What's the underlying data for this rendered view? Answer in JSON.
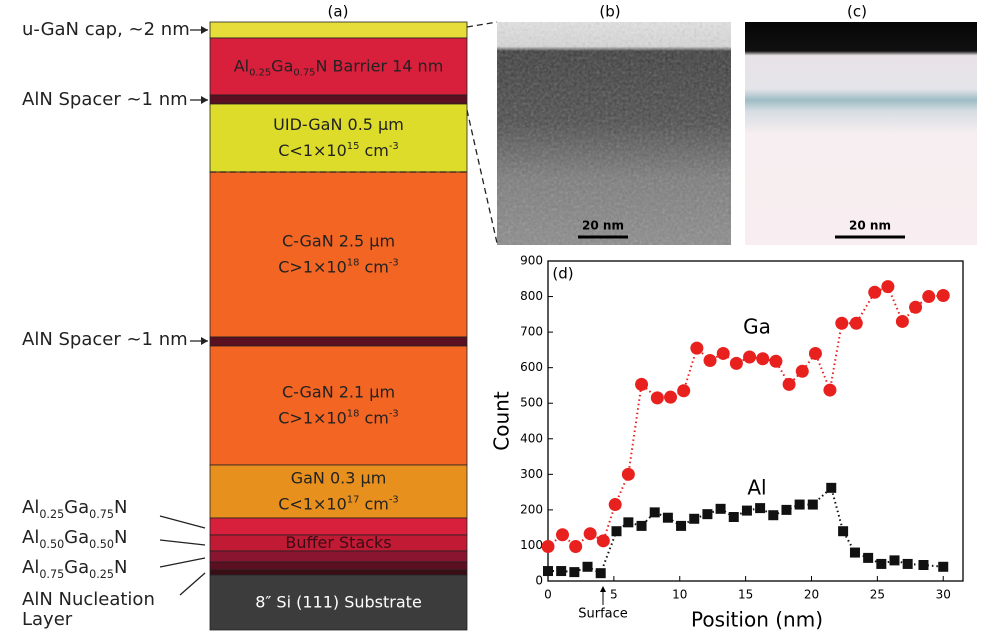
{
  "panels": [
    "(a)",
    "(b)",
    "(c)"
  ],
  "stack": {
    "layers": [
      {
        "color": "#e6dd3a"
      },
      {
        "color": "#d81f3c",
        "lines": [
          [
            {
              "t": "Al"
            },
            {
              "sub": "0.25"
            },
            {
              "t": "Ga"
            },
            {
              "sub": "0.75"
            },
            {
              "t": "N Barrier 14 nm"
            }
          ]
        ]
      },
      {
        "color": "#5a1020"
      },
      {
        "color": "#dddc2a",
        "lines": [
          [
            {
              "t": "UID-GaN 0.5 μm"
            }
          ],
          [
            {
              "t": "C<1×10"
            },
            {
              "sup": "15"
            },
            {
              "t": " cm"
            },
            {
              "sup": "-3"
            }
          ]
        ]
      },
      {
        "color": "#f26522",
        "lines": [
          [
            {
              "t": "C-GaN 2.5 μm"
            }
          ],
          [
            {
              "t": "C>1×10"
            },
            {
              "sup": "18"
            },
            {
              "t": " cm"
            },
            {
              "sup": "-3"
            }
          ]
        ]
      },
      {
        "color": "#5a1020"
      },
      {
        "color": "#f26522",
        "lines": [
          [
            {
              "t": "C-GaN 2.1 μm"
            }
          ],
          [
            {
              "t": "C>1×10"
            },
            {
              "sup": "18"
            },
            {
              "t": " cm"
            },
            {
              "sup": "-3"
            }
          ]
        ]
      },
      {
        "color": "#e8901e",
        "lines": [
          [
            {
              "t": "GaN 0.3 μm"
            }
          ],
          [
            {
              "t": "C<1×10"
            },
            {
              "sup": "17"
            },
            {
              "t": " cm"
            },
            {
              "sup": "-3"
            }
          ]
        ]
      },
      {
        "color": "#d81f3c"
      },
      {
        "color": "#c01a35",
        "lines": [
          [
            {
              "t": "Buffer Stacks"
            }
          ]
        ]
      },
      {
        "color": "#8a1530"
      },
      {
        "color": "#5a1020"
      },
      {
        "color": "#3a0c14"
      },
      {
        "color": "#3c3c3c",
        "lines": [
          [
            {
              "t": "8″ Si (111) Substrate"
            }
          ]
        ]
      }
    ],
    "side_labels": [
      {
        "lines": [
          [
            {
              "t": "u-GaN cap, ~2 nm"
            }
          ]
        ]
      },
      {
        "lines": [
          [
            {
              "t": "AlN Spacer ~1 nm"
            }
          ]
        ]
      },
      {
        "lines": [
          [
            {
              "t": "AlN Spacer ~1 nm"
            }
          ]
        ]
      },
      {
        "lines": [
          [
            {
              "t": "Al"
            },
            {
              "sub": "0.25"
            },
            {
              "t": "Ga"
            },
            {
              "sub": "0.75"
            },
            {
              "t": "N"
            }
          ]
        ]
      },
      {
        "lines": [
          [
            {
              "t": "Al"
            },
            {
              "sub": "0.50"
            },
            {
              "t": "Ga"
            },
            {
              "sub": "0.50"
            },
            {
              "t": "N"
            }
          ]
        ]
      },
      {
        "lines": [
          [
            {
              "t": "Al"
            },
            {
              "sub": "0.75"
            },
            {
              "t": "Ga"
            },
            {
              "sub": "0.25"
            },
            {
              "t": "N"
            }
          ]
        ]
      },
      {
        "lines": [
          [
            {
              "t": "AlN Nucleation"
            }
          ],
          [
            {
              "t": "Layer"
            }
          ]
        ]
      }
    ]
  },
  "images": {
    "b_scale": "20 nm",
    "c_scale": "20 nm"
  },
  "chart_data": {
    "type": "scatter-line",
    "panel": "(d)",
    "x_label": "Position (nm)",
    "y_label": "Count",
    "annotation": "Surface",
    "xlim": [
      0,
      31.5
    ],
    "ylim": [
      0,
      900
    ],
    "xticks": [
      0,
      5,
      10,
      15,
      20,
      25,
      30
    ],
    "yticks": [
      0,
      100,
      200,
      300,
      400,
      500,
      600,
      700,
      800,
      900
    ],
    "series": [
      {
        "name": "Ga",
        "color": "#e8201e",
        "marker": "circle",
        "x": [
          0,
          1.1,
          2.1,
          3.2,
          4.2,
          5.1,
          6.1,
          7.1,
          8.3,
          9.3,
          10.3,
          11.3,
          12.3,
          13.3,
          14.3,
          15.3,
          16.3,
          17.3,
          18.3,
          19.3,
          20.3,
          21.4,
          22.3,
          23.4,
          24.8,
          25.8,
          26.9,
          27.9,
          28.9,
          30
        ],
        "values": [
          97,
          130,
          97,
          133,
          113,
          215,
          300,
          553,
          515,
          517,
          535,
          655,
          620,
          640,
          612,
          630,
          625,
          618,
          553,
          590,
          640,
          537,
          725,
          725,
          812,
          828,
          730,
          770,
          800,
          803
        ]
      },
      {
        "name": "Al",
        "color": "#111111",
        "marker": "square",
        "x": [
          0,
          1,
          2,
          3,
          4,
          5.2,
          6.1,
          7.1,
          8.1,
          9.1,
          10.1,
          11.1,
          12.1,
          13.1,
          14.1,
          15.1,
          16.1,
          17.1,
          18.1,
          19.1,
          20.1,
          21.5,
          22.4,
          23.3,
          24.3,
          25.3,
          26.3,
          27.3,
          28.5,
          30
        ],
        "values": [
          28,
          28,
          25,
          40,
          22,
          140,
          165,
          155,
          193,
          178,
          155,
          175,
          188,
          203,
          180,
          198,
          205,
          185,
          200,
          215,
          215,
          262,
          140,
          80,
          65,
          48,
          58,
          48,
          45,
          40
        ]
      }
    ]
  }
}
